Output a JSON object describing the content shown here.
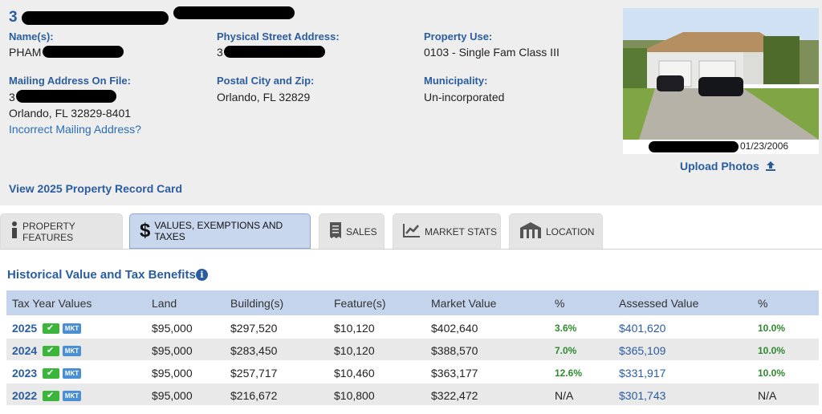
{
  "header": {
    "parcel_title_prefix": "3",
    "names_label": "Name(s):",
    "names_value_prefix": "PHAM",
    "mailing_label": "Mailing Address On File:",
    "mailing_line1_prefix": "3",
    "mailing_line2": "Orlando, FL 32829-8401",
    "incorrect_mailing_link": "Incorrect Mailing Address?",
    "physical_label": "Physical Street Address:",
    "physical_value_prefix": "3",
    "postal_label": "Postal City and Zip:",
    "postal_value": "Orlando, FL 32829",
    "use_label": "Property Use:",
    "use_value": "0103 - Single Fam Class III",
    "municipality_label": "Municipality:",
    "municipality_value": "Un-incorporated",
    "record_card_link": "View 2025 Property Record Card",
    "photo_date": "01/23/2006",
    "upload_photos": "Upload Photos"
  },
  "tabs": [
    {
      "label": "PROPERTY FEATURES",
      "icon": "info-icon"
    },
    {
      "label": "VALUES, EXEMPTIONS AND TAXES",
      "icon": "dollar-icon"
    },
    {
      "label": "SALES",
      "icon": "receipt-icon"
    },
    {
      "label": "MARKET STATS",
      "icon": "chart-line-icon"
    },
    {
      "label": "LOCATION",
      "icon": "building-icon"
    }
  ],
  "section": {
    "title": "Historical Value and Tax Benefits",
    "info": "i"
  },
  "table": {
    "headers": [
      "Tax Year Values",
      "Land",
      "Building(s)",
      "Feature(s)",
      "Market Value",
      "%",
      "Assessed Value",
      "%"
    ],
    "mkt_badge": "MKT",
    "rows": [
      {
        "year": "2025",
        "land": "$95,000",
        "building": "$297,520",
        "feature": "$10,120",
        "market": "$402,640",
        "market_pct": "3.6%",
        "assessed": "$401,620",
        "assessed_pct": "10.0%"
      },
      {
        "year": "2024",
        "land": "$95,000",
        "building": "$283,450",
        "feature": "$10,120",
        "market": "$388,570",
        "market_pct": "7.0%",
        "assessed": "$365,109",
        "assessed_pct": "10.0%"
      },
      {
        "year": "2023",
        "land": "$95,000",
        "building": "$257,717",
        "feature": "$10,460",
        "market": "$363,177",
        "market_pct": "12.6%",
        "assessed": "$331,917",
        "assessed_pct": "10.0%"
      },
      {
        "year": "2022",
        "land": "$95,000",
        "building": "$216,672",
        "feature": "$10,800",
        "market": "$322,472",
        "market_pct": "N/A",
        "assessed": "$301,743",
        "assessed_pct": "N/A"
      }
    ]
  },
  "colors": {
    "accent_blue": "#2a5d9f",
    "positive_green": "#2d8a2d",
    "active_tab": "#c8d6ee",
    "table_header": "#c5d4ed"
  }
}
